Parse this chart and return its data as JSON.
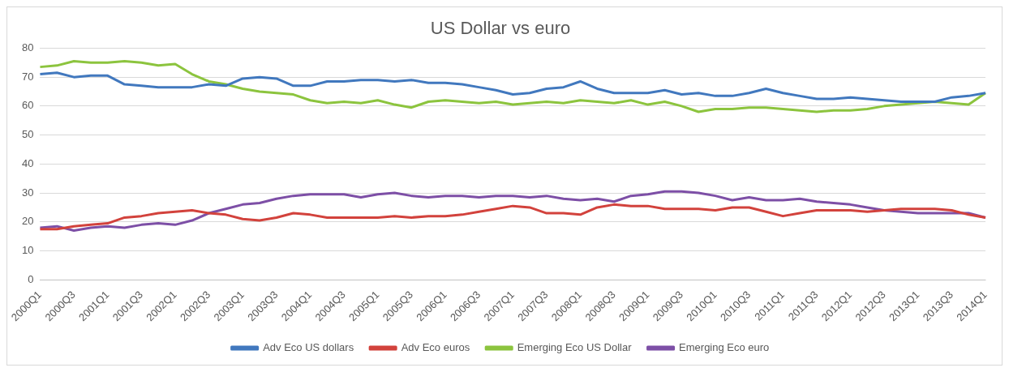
{
  "chart_data": {
    "type": "line",
    "title": "US Dollar vs euro",
    "categories": [
      "2000Q1",
      null,
      "2000Q3",
      null,
      "2001Q1",
      null,
      "2001Q3",
      null,
      "2002Q1",
      null,
      "2002Q3",
      null,
      "2003Q1",
      null,
      "2003Q3",
      null,
      "2004Q1",
      null,
      "2004Q3",
      null,
      "2005Q1",
      null,
      "2005Q3",
      null,
      "2006Q1",
      null,
      "2006Q3",
      null,
      "2007Q1",
      null,
      "2007Q3",
      null,
      "2008Q1",
      null,
      "2008Q3",
      null,
      "2009Q1",
      null,
      "2009Q3",
      null,
      "2010Q1",
      null,
      "2010Q3",
      null,
      "2011Q1",
      null,
      "2011Q3",
      null,
      "2012Q1",
      null,
      "2012Q3",
      null,
      "2013Q1",
      null,
      "2013Q3",
      null,
      "2014Q1"
    ],
    "series": [
      {
        "name": "Adv Eco US dollars",
        "color": "#4178be",
        "values": [
          71,
          71.5,
          70,
          70.5,
          70.5,
          67.5,
          67,
          66.5,
          66.5,
          66.5,
          67.5,
          67,
          69.5,
          70,
          69.5,
          67,
          67,
          68.5,
          68.5,
          69,
          69,
          68.5,
          69,
          68,
          68,
          67.5,
          66.5,
          65.5,
          64,
          64.5,
          66,
          66.5,
          68.5,
          66,
          64.5,
          64.5,
          64.5,
          65.5,
          64,
          64.5,
          63.5,
          63.5,
          64.5,
          66,
          64.5,
          63.5,
          62.5,
          62.5,
          63,
          62.5,
          62,
          61.5,
          61.5,
          61.5,
          63,
          63.5,
          64.5
        ]
      },
      {
        "name": "Adv Eco euros",
        "color": "#d2423c",
        "values": [
          17.5,
          17.5,
          18.5,
          19,
          19.5,
          21.5,
          22,
          23,
          23.5,
          24,
          23,
          22.5,
          21,
          20.5,
          21.5,
          23,
          22.5,
          21.5,
          21.5,
          21.5,
          21.5,
          22,
          21.5,
          22,
          22,
          22.5,
          23.5,
          24.5,
          25.5,
          25,
          23,
          23,
          22.5,
          25,
          26,
          25.5,
          25.5,
          24.5,
          24.5,
          24.5,
          24,
          25,
          25,
          23.5,
          22,
          23,
          24,
          24,
          24,
          23.5,
          24,
          24.5,
          24.5,
          24.5,
          24,
          22.5,
          21.5
        ]
      },
      {
        "name": "Emerging Eco US Dollar",
        "color": "#8cc43e",
        "values": [
          73.5,
          74,
          75.5,
          75,
          75,
          75.5,
          75,
          74,
          74.5,
          71,
          68.5,
          67.5,
          66,
          65,
          64.5,
          64,
          62,
          61,
          61.5,
          61,
          62,
          60.5,
          59.5,
          61.5,
          62,
          61.5,
          61,
          61.5,
          60.5,
          61,
          61.5,
          61,
          62,
          61.5,
          61,
          62,
          60.5,
          61.5,
          60,
          58,
          59,
          59,
          59.5,
          59.5,
          59,
          58.5,
          58,
          58.5,
          58.5,
          59,
          60,
          60.5,
          61,
          61.5,
          61,
          60.5,
          64.5
        ]
      },
      {
        "name": "Emerging Eco euro",
        "color": "#7d4fa6",
        "values": [
          18,
          18.5,
          17,
          18,
          18.5,
          18,
          19,
          19.5,
          19,
          20.5,
          23,
          24.5,
          26,
          26.5,
          28,
          29,
          29.5,
          29.5,
          29.5,
          28.5,
          29.5,
          30,
          29,
          28.5,
          29,
          29,
          28.5,
          29,
          29,
          28.5,
          29,
          28,
          27.5,
          28,
          27,
          29,
          29.5,
          30.5,
          30.5,
          30,
          29,
          27.5,
          28.5,
          27.5,
          27.5,
          28,
          27,
          26.5,
          26,
          25,
          24,
          23.5,
          23,
          23,
          23,
          23,
          21.5
        ]
      }
    ],
    "ylim": [
      0,
      80
    ],
    "yticks": [
      0,
      10,
      20,
      30,
      40,
      50,
      60,
      70,
      80
    ],
    "grid": "y",
    "legend": "bottom",
    "marker": "none",
    "line_style": "solid"
  }
}
